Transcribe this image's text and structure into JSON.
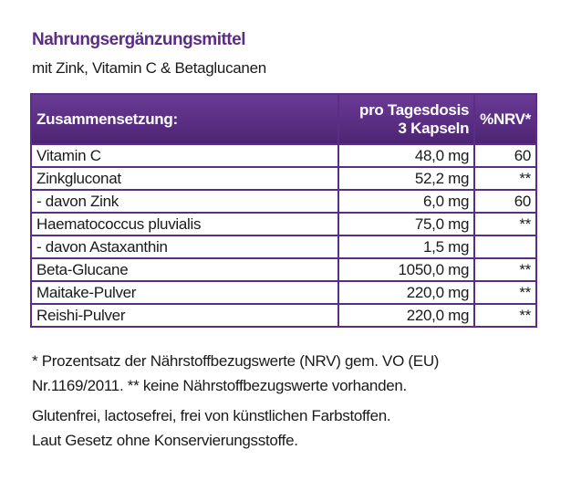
{
  "header": {
    "title": "Nahrungsergänzungsmittel",
    "subtitle": "mit Zink, Vitamin C & Betaglucanen"
  },
  "table": {
    "columns": [
      "Zusammensetzung:",
      [
        "pro Tagesdosis",
        "3 Kapseln"
      ],
      "%NRV*"
    ],
    "rows": [
      {
        "name": "Vitamin C",
        "amount": "48,0 mg",
        "nrv": "60"
      },
      {
        "name": "Zinkgluconat",
        "amount": "52,2 mg",
        "nrv": "**"
      },
      {
        "name": "- davon Zink",
        "amount": "6,0 mg",
        "nrv": "60"
      },
      {
        "name": "Haematococcus pluvialis",
        "amount": "75,0 mg",
        "nrv": "**"
      },
      {
        "name": "- davon Astaxanthin",
        "amount": "1,5 mg"
      },
      {
        "name": "Beta-Glucane",
        "amount": "1050,0 mg",
        "nrv": "**"
      },
      {
        "name": "Maitake-Pulver",
        "amount": "220,0 mg",
        "nrv": "**"
      },
      {
        "name": "Reishi-Pulver",
        "amount": "220,0 mg",
        "nrv": "**"
      }
    ]
  },
  "footnotes": [
    "* Prozentsatz der Nährstoffbezugswerte (NRV) gem. VO (EU)",
    "Nr.1169/2011. ** keine Nährstoffbezugswerte vorhanden.",
    "Glutenfrei, lactosefrei, frei von künstlichen Farbstoffen.",
    "Laut Gesetz ohne Konservierungsstoffe."
  ]
}
